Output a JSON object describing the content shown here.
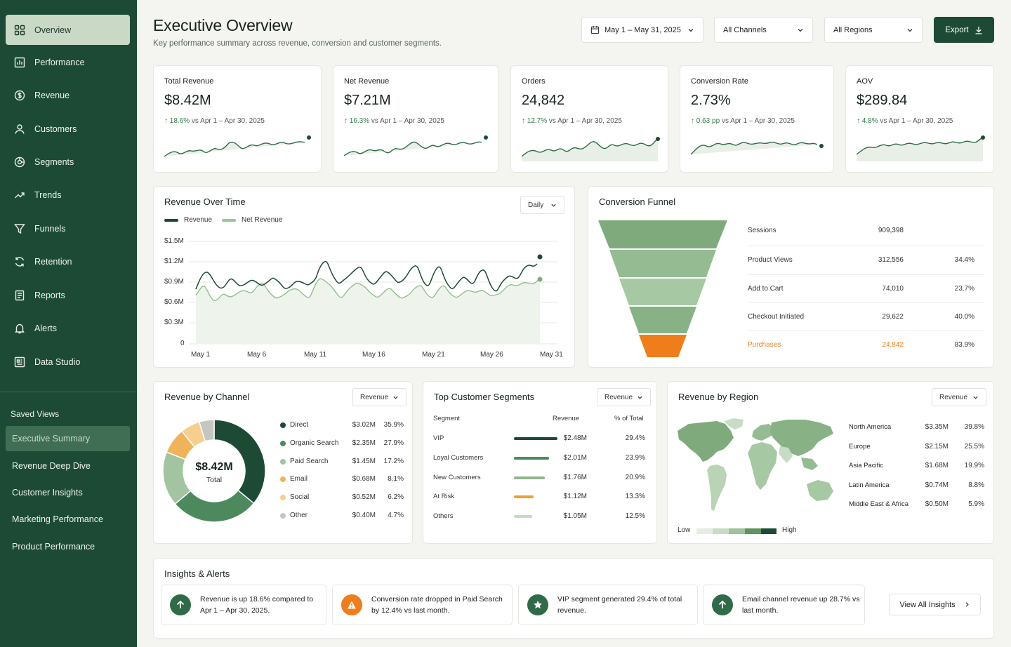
{
  "sidebar": {
    "nav": [
      {
        "label": "Overview",
        "icon": "grid-icon"
      },
      {
        "label": "Performance",
        "icon": "bar-chart-icon"
      },
      {
        "label": "Revenue",
        "icon": "dollar-circle-icon"
      },
      {
        "label": "Customers",
        "icon": "user-icon"
      },
      {
        "label": "Segments",
        "icon": "segments-icon"
      },
      {
        "label": "Trends",
        "icon": "trend-up-icon"
      },
      {
        "label": "Funnels",
        "icon": "funnel-icon"
      },
      {
        "label": "Retention",
        "icon": "refresh-icon"
      },
      {
        "label": "Reports",
        "icon": "document-icon"
      },
      {
        "label": "Alerts",
        "icon": "bell-icon"
      },
      {
        "label": "Data Studio",
        "icon": "data-studio-icon"
      }
    ],
    "saved_title": "Saved Views",
    "saved": [
      "Executive Summary",
      "Revenue Deep Dive",
      "Customer Insights",
      "Marketing Performance",
      "Product Performance"
    ]
  },
  "header": {
    "title": "Executive Overview",
    "subtitle": "Key performance summary across revenue, conversion and customer segments.",
    "date_range": "May 1 – May 31, 2025",
    "channels": "All Channels",
    "regions": "All Regions",
    "export": "Export"
  },
  "kpis": [
    {
      "label": "Total Revenue",
      "value": "$8.42M",
      "change": "18.6%",
      "compare": "vs Apr 1 – Apr 30, 2025"
    },
    {
      "label": "Net Revenue",
      "value": "$7.21M",
      "change": "16.3%",
      "compare": "vs Apr 1 – Apr 30, 2025"
    },
    {
      "label": "Orders",
      "value": "24,842",
      "change": "12.7%",
      "compare": "vs Apr 1 – Apr 30, 2025"
    },
    {
      "label": "Conversion Rate",
      "value": "2.73%",
      "change": "0.63 pp",
      "compare": "vs Apr 1 – Apr 30, 2025"
    },
    {
      "label": "AOV",
      "value": "$289.84",
      "change": "4.8%",
      "compare": "vs Apr 1 – Apr 30, 2025"
    }
  ],
  "revenue_over_time": {
    "title": "Revenue Over Time",
    "granularity": "Daily",
    "legend": [
      "Revenue",
      "Net Revenue"
    ],
    "y_ticks": [
      "$1.5M",
      "$1.2M",
      "$0.9M",
      "$0.6M",
      "$0.3M",
      "0"
    ],
    "x_ticks": [
      "May 1",
      "May 6",
      "May 11",
      "May 16",
      "May 21",
      "May 26",
      "May 31"
    ]
  },
  "funnel": {
    "title": "Conversion Funnel",
    "stages": [
      {
        "name": "Sessions",
        "value": "909,398",
        "rate": ""
      },
      {
        "name": "Product Views",
        "value": "312,556",
        "rate": "34.4%"
      },
      {
        "name": "Add to Cart",
        "value": "74,010",
        "rate": "23.7%"
      },
      {
        "name": "Checkout Initiated",
        "value": "29,622",
        "rate": "40.0%"
      },
      {
        "name": "Purchases",
        "value": "24,842",
        "rate": "83.9%"
      }
    ]
  },
  "channel": {
    "title": "Revenue by Channel",
    "metric": "Revenue",
    "total": "$8.42M",
    "total_label": "Total",
    "rows": [
      {
        "name": "Direct",
        "value": "$3.02M",
        "pct": "35.9%",
        "color": "#1d4a35"
      },
      {
        "name": "Organic Search",
        "value": "$2.35M",
        "pct": "27.9%",
        "color": "#4c8a5e"
      },
      {
        "name": "Paid Search",
        "value": "$1.45M",
        "pct": "17.2%",
        "color": "#a3c4a0"
      },
      {
        "name": "Email",
        "value": "$0.68M",
        "pct": "8.1%",
        "color": "#f0b35a"
      },
      {
        "name": "Social",
        "value": "$0.52M",
        "pct": "6.2%",
        "color": "#f6cf8e"
      },
      {
        "name": "Other",
        "value": "$0.40M",
        "pct": "4.7%",
        "color": "#c6c6c0"
      }
    ]
  },
  "segments": {
    "title": "Top Customer Segments",
    "metric": "Revenue",
    "headers": [
      "Segment",
      "Revenue",
      "% of Total"
    ],
    "rows": [
      {
        "name": "VIP",
        "value": "$2.48M",
        "pct": "29.4%",
        "share": 1.0,
        "color": "#1d4a35"
      },
      {
        "name": "Loyal Customers",
        "value": "$2.01M",
        "pct": "23.9%",
        "share": 0.81,
        "color": "#4c8a5e"
      },
      {
        "name": "New Customers",
        "value": "$1.76M",
        "pct": "20.9%",
        "share": 0.71,
        "color": "#8fb58d"
      },
      {
        "name": "At Risk",
        "value": "$1.12M",
        "pct": "13.3%",
        "share": 0.45,
        "color": "#f0a030"
      },
      {
        "name": "Others",
        "value": "$1.05M",
        "pct": "12.5%",
        "share": 0.42,
        "color": "#c4dcc2"
      }
    ]
  },
  "region": {
    "title": "Revenue by Region",
    "metric": "Revenue",
    "low": "Low",
    "high": "High",
    "rows": [
      {
        "name": "North America",
        "value": "$3.35M",
        "pct": "39.8%"
      },
      {
        "name": "Europe",
        "value": "$2.15M",
        "pct": "25.5%"
      },
      {
        "name": "Asia Pacific",
        "value": "$1.68M",
        "pct": "19.9%"
      },
      {
        "name": "Latin America",
        "value": "$0.74M",
        "pct": "8.8%"
      },
      {
        "name": "Middle East & Africa",
        "value": "$0.50M",
        "pct": "5.9%"
      }
    ]
  },
  "insights": {
    "title": "Insights & Alerts",
    "items": [
      {
        "text": "Revenue is up 18.6% compared to Apr 1 – Apr 30, 2025.",
        "icon": "arrow-up-icon",
        "color": "#2f6b47"
      },
      {
        "text": "Conversion rate dropped in Paid Search by 12.4% vs last month.",
        "icon": "warning-icon",
        "color": "#ef7d1a"
      },
      {
        "text": "VIP segment generated 29.4% of total revenue.",
        "icon": "star-icon",
        "color": "#2f6b47"
      },
      {
        "text": "Email channel revenue up 28.7% vs last month.",
        "icon": "arrow-up-icon",
        "color": "#2f6b47"
      }
    ],
    "view_all": "View All Insights"
  },
  "colors": {
    "brand": "#1d4a35",
    "accent": "#ef7d1a",
    "positive": "#2e7d4a"
  }
}
